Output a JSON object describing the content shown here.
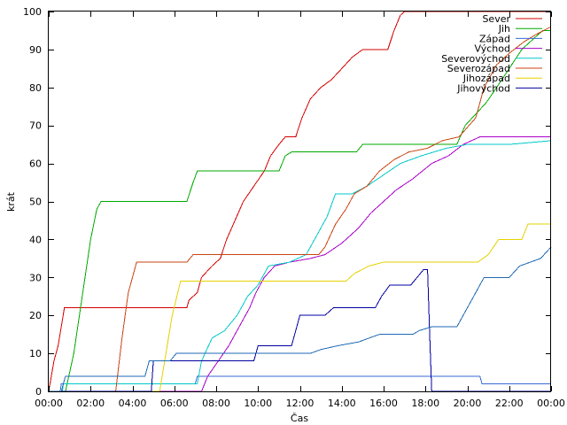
{
  "chart_data": {
    "type": "line",
    "title": "",
    "xlabel": "Čas",
    "ylabel": "krát",
    "xlim": [
      0,
      24
    ],
    "ylim": [
      0,
      100
    ],
    "grid": false,
    "legend_position": "top-right",
    "x_ticks": [
      {
        "value": 0,
        "label": "00:00"
      },
      {
        "value": 2,
        "label": "02:00"
      },
      {
        "value": 4,
        "label": "04:00"
      },
      {
        "value": 6,
        "label": "06:00"
      },
      {
        "value": 8,
        "label": "08:00"
      },
      {
        "value": 10,
        "label": "10:00"
      },
      {
        "value": 12,
        "label": "12:00"
      },
      {
        "value": 14,
        "label": "14:00"
      },
      {
        "value": 16,
        "label": "16:00"
      },
      {
        "value": 18,
        "label": "18:00"
      },
      {
        "value": 20,
        "label": "20:00"
      },
      {
        "value": 22,
        "label": "22:00"
      },
      {
        "value": 24,
        "label": "00:00"
      }
    ],
    "y_ticks": [
      {
        "value": 0,
        "label": "0"
      },
      {
        "value": 10,
        "label": "10"
      },
      {
        "value": 20,
        "label": "20"
      },
      {
        "value": 30,
        "label": "30"
      },
      {
        "value": 40,
        "label": "40"
      },
      {
        "value": 50,
        "label": "50"
      },
      {
        "value": 60,
        "label": "60"
      },
      {
        "value": 70,
        "label": "70"
      },
      {
        "value": 80,
        "label": "80"
      },
      {
        "value": 90,
        "label": "90"
      },
      {
        "value": 100,
        "label": "100"
      }
    ],
    "series": [
      {
        "name": "Sever",
        "color": "#d40000",
        "points": [
          [
            0,
            0
          ],
          [
            0.25,
            8
          ],
          [
            0.45,
            12
          ],
          [
            0.75,
            22
          ],
          [
            6.6,
            22
          ],
          [
            6.7,
            24
          ],
          [
            7.1,
            26
          ],
          [
            7.3,
            30
          ],
          [
            7.8,
            33
          ],
          [
            8.2,
            35
          ],
          [
            8.5,
            40
          ],
          [
            8.9,
            45
          ],
          [
            9.3,
            50
          ],
          [
            9.8,
            54
          ],
          [
            10.3,
            58
          ],
          [
            10.6,
            62
          ],
          [
            11.0,
            65
          ],
          [
            11.3,
            67
          ],
          [
            11.8,
            67
          ],
          [
            12.1,
            72
          ],
          [
            12.5,
            77
          ],
          [
            13.0,
            80
          ],
          [
            13.5,
            82
          ],
          [
            14.0,
            85
          ],
          [
            14.5,
            88
          ],
          [
            15.0,
            90
          ],
          [
            16.2,
            90
          ],
          [
            16.5,
            95
          ],
          [
            16.8,
            99
          ],
          [
            17.0,
            100
          ],
          [
            24,
            100
          ]
        ]
      },
      {
        "name": "Jih",
        "color": "#00aa00",
        "points": [
          [
            0,
            0
          ],
          [
            0.8,
            0
          ],
          [
            1.2,
            10
          ],
          [
            1.6,
            25
          ],
          [
            2.0,
            40
          ],
          [
            2.3,
            48
          ],
          [
            2.5,
            50
          ],
          [
            6.6,
            50
          ],
          [
            6.9,
            55
          ],
          [
            7.1,
            58
          ],
          [
            11.0,
            58
          ],
          [
            11.3,
            62
          ],
          [
            11.6,
            63
          ],
          [
            14.7,
            63
          ],
          [
            15.0,
            65
          ],
          [
            19.5,
            65
          ],
          [
            19.9,
            70
          ],
          [
            20.4,
            73
          ],
          [
            20.9,
            76
          ],
          [
            21.4,
            80
          ],
          [
            22.0,
            85
          ],
          [
            22.6,
            90
          ],
          [
            23.2,
            93
          ],
          [
            23.6,
            95
          ],
          [
            24,
            95
          ]
        ]
      },
      {
        "name": "Západ",
        "color": "#3a6ad4",
        "points": [
          [
            0,
            0
          ],
          [
            0.55,
            0
          ],
          [
            0.6,
            2
          ],
          [
            7.0,
            2
          ],
          [
            7.1,
            4
          ],
          [
            20.6,
            4
          ],
          [
            20.7,
            2
          ],
          [
            24,
            2
          ]
        ]
      },
      {
        "name": "Východ",
        "color": "#aa00c8",
        "points": [
          [
            0,
            0
          ],
          [
            7.3,
            0
          ],
          [
            7.6,
            4
          ],
          [
            8.1,
            8
          ],
          [
            8.6,
            12
          ],
          [
            9.0,
            16
          ],
          [
            9.3,
            19
          ],
          [
            9.6,
            22
          ],
          [
            9.9,
            26
          ],
          [
            10.3,
            30
          ],
          [
            10.8,
            33
          ],
          [
            11.5,
            34
          ],
          [
            12.5,
            35
          ],
          [
            13.2,
            36
          ],
          [
            14.0,
            39
          ],
          [
            14.8,
            43
          ],
          [
            15.4,
            47
          ],
          [
            16.0,
            50
          ],
          [
            16.6,
            53
          ],
          [
            17.4,
            56
          ],
          [
            18.3,
            60
          ],
          [
            19.1,
            62
          ],
          [
            19.8,
            65
          ],
          [
            20.6,
            67
          ],
          [
            24,
            67
          ]
        ]
      },
      {
        "name": "Severovýchod",
        "color": "#00c8c8",
        "points": [
          [
            0,
            0
          ],
          [
            0.65,
            0
          ],
          [
            0.7,
            2
          ],
          [
            7.1,
            2
          ],
          [
            7.3,
            8
          ],
          [
            7.8,
            14
          ],
          [
            8.4,
            16
          ],
          [
            9.0,
            20
          ],
          [
            9.5,
            25
          ],
          [
            10.0,
            28
          ],
          [
            10.5,
            33
          ],
          [
            11.5,
            34
          ],
          [
            12.3,
            36
          ],
          [
            12.9,
            42
          ],
          [
            13.3,
            46
          ],
          [
            13.7,
            52
          ],
          [
            14.5,
            52
          ],
          [
            15.2,
            54
          ],
          [
            16.0,
            57
          ],
          [
            16.8,
            60
          ],
          [
            17.8,
            62
          ],
          [
            19.0,
            64
          ],
          [
            20.0,
            65
          ],
          [
            21.0,
            65
          ],
          [
            22.0,
            65
          ],
          [
            24,
            66
          ]
        ]
      },
      {
        "name": "Severozápad",
        "color": "#c84614",
        "points": [
          [
            0,
            0
          ],
          [
            3.2,
            0
          ],
          [
            3.5,
            14
          ],
          [
            3.8,
            26
          ],
          [
            4.2,
            34
          ],
          [
            6.6,
            34
          ],
          [
            6.9,
            36
          ],
          [
            12.9,
            36
          ],
          [
            13.2,
            38
          ],
          [
            13.7,
            44
          ],
          [
            14.2,
            48
          ],
          [
            14.6,
            52
          ],
          [
            15.2,
            54
          ],
          [
            15.8,
            58
          ],
          [
            16.5,
            61
          ],
          [
            17.2,
            63
          ],
          [
            18.1,
            64
          ],
          [
            18.8,
            66
          ],
          [
            19.6,
            67
          ],
          [
            20.4,
            72
          ],
          [
            20.8,
            80
          ],
          [
            21.4,
            86
          ],
          [
            22.0,
            89
          ],
          [
            22.7,
            92
          ],
          [
            23.3,
            94
          ],
          [
            24,
            96
          ]
        ]
      },
      {
        "name": "Jihozápad",
        "color": "#e6d200",
        "points": [
          [
            0,
            0
          ],
          [
            5.3,
            0
          ],
          [
            5.6,
            10
          ],
          [
            5.9,
            20
          ],
          [
            6.3,
            29
          ],
          [
            14.2,
            29
          ],
          [
            14.6,
            31
          ],
          [
            15.3,
            33
          ],
          [
            16.0,
            34
          ],
          [
            20.5,
            34
          ],
          [
            21.0,
            36
          ],
          [
            21.5,
            40
          ],
          [
            22.6,
            40
          ],
          [
            22.9,
            44
          ],
          [
            24,
            44
          ]
        ]
      },
      {
        "name": "Jihovýchod",
        "color": "#0000a0",
        "points": [
          [
            0,
            0
          ],
          [
            4.9,
            0
          ],
          [
            5.0,
            8
          ],
          [
            9.8,
            8
          ],
          [
            10.0,
            12
          ],
          [
            11.6,
            12
          ],
          [
            12.0,
            20
          ],
          [
            13.2,
            20
          ],
          [
            13.6,
            22
          ],
          [
            15.6,
            22
          ],
          [
            15.9,
            25
          ],
          [
            16.3,
            28
          ],
          [
            17.3,
            28
          ],
          [
            17.6,
            30
          ],
          [
            17.9,
            32
          ],
          [
            18.1,
            32
          ],
          [
            18.2,
            15
          ],
          [
            18.3,
            0
          ],
          [
            24,
            0
          ]
        ]
      },
      {
        "name": "",
        "color": "#1e6ab4",
        "points": [
          [
            0,
            0
          ],
          [
            0.6,
            0
          ],
          [
            0.8,
            4
          ],
          [
            4.6,
            4
          ],
          [
            4.8,
            8
          ],
          [
            5.8,
            8
          ],
          [
            6.1,
            10
          ],
          [
            12.5,
            10
          ],
          [
            13.0,
            11
          ],
          [
            13.8,
            12
          ],
          [
            14.8,
            13
          ],
          [
            15.8,
            15
          ],
          [
            17.4,
            15
          ],
          [
            17.7,
            16
          ],
          [
            18.3,
            17
          ],
          [
            19.5,
            17
          ],
          [
            19.8,
            20
          ],
          [
            20.3,
            25
          ],
          [
            20.8,
            30
          ],
          [
            22.0,
            30
          ],
          [
            22.5,
            33
          ],
          [
            23.5,
            35
          ],
          [
            24,
            38
          ]
        ]
      }
    ]
  }
}
